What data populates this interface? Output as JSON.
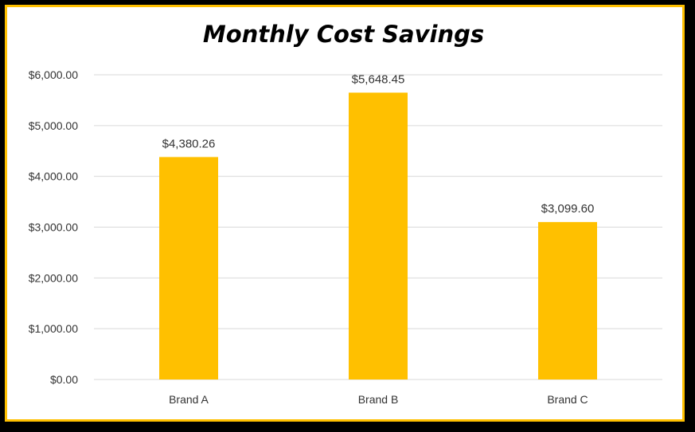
{
  "chart_data": {
    "type": "bar",
    "title": "Monthly Cost Savings",
    "xlabel": "",
    "ylabel": "",
    "categories": [
      "Brand A",
      "Brand B",
      "Brand C"
    ],
    "values": [
      4380.26,
      5648.45,
      3099.6
    ],
    "data_labels": [
      "$4,380.26",
      "$5,648.45",
      "$3,099.60"
    ],
    "ylim": [
      0,
      6000
    ],
    "y_ticks": [
      0,
      1000,
      2000,
      3000,
      4000,
      5000,
      6000
    ],
    "y_tick_labels": [
      "$0.00",
      "$1,000.00",
      "$2,000.00",
      "$3,000.00",
      "$4,000.00",
      "$5,000.00",
      "$6,000.00"
    ],
    "grid": true,
    "legend": "none",
    "bar_color": "#ffc000",
    "border_color": "#ffc000",
    "gridline_color": "#d9d9d9"
  }
}
